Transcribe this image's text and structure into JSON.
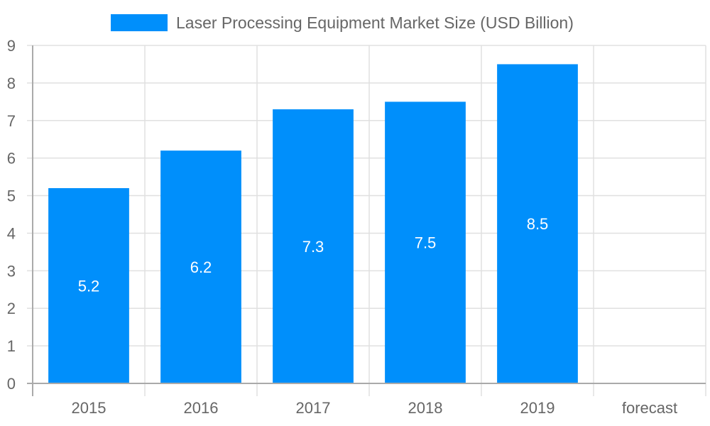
{
  "chart_data": {
    "type": "bar",
    "title": "",
    "legend": [
      "Laser Processing Equipment Market Size (USD Billion)"
    ],
    "legend_position": "top",
    "categories": [
      "2015",
      "2016",
      "2017",
      "2018",
      "2019",
      "forecast"
    ],
    "series": [
      {
        "name": "Laser Processing Equipment Market Size (USD Billion)",
        "values": [
          5.2,
          6.2,
          7.3,
          7.5,
          8.5,
          null
        ],
        "color": "#008ffb"
      }
    ],
    "data_labels": [
      "5.2",
      "6.2",
      "7.3",
      "7.5",
      "8.5",
      ""
    ],
    "xlabel": "",
    "ylabel": "",
    "ylim": [
      0,
      9
    ],
    "y_ticks": [
      "0",
      "1",
      "2",
      "3",
      "4",
      "5",
      "6",
      "7",
      "8",
      "9"
    ],
    "grid": true
  },
  "legend": {
    "label": "Laser Processing Equipment Market Size (USD Billion)",
    "color": "#008ffb"
  }
}
